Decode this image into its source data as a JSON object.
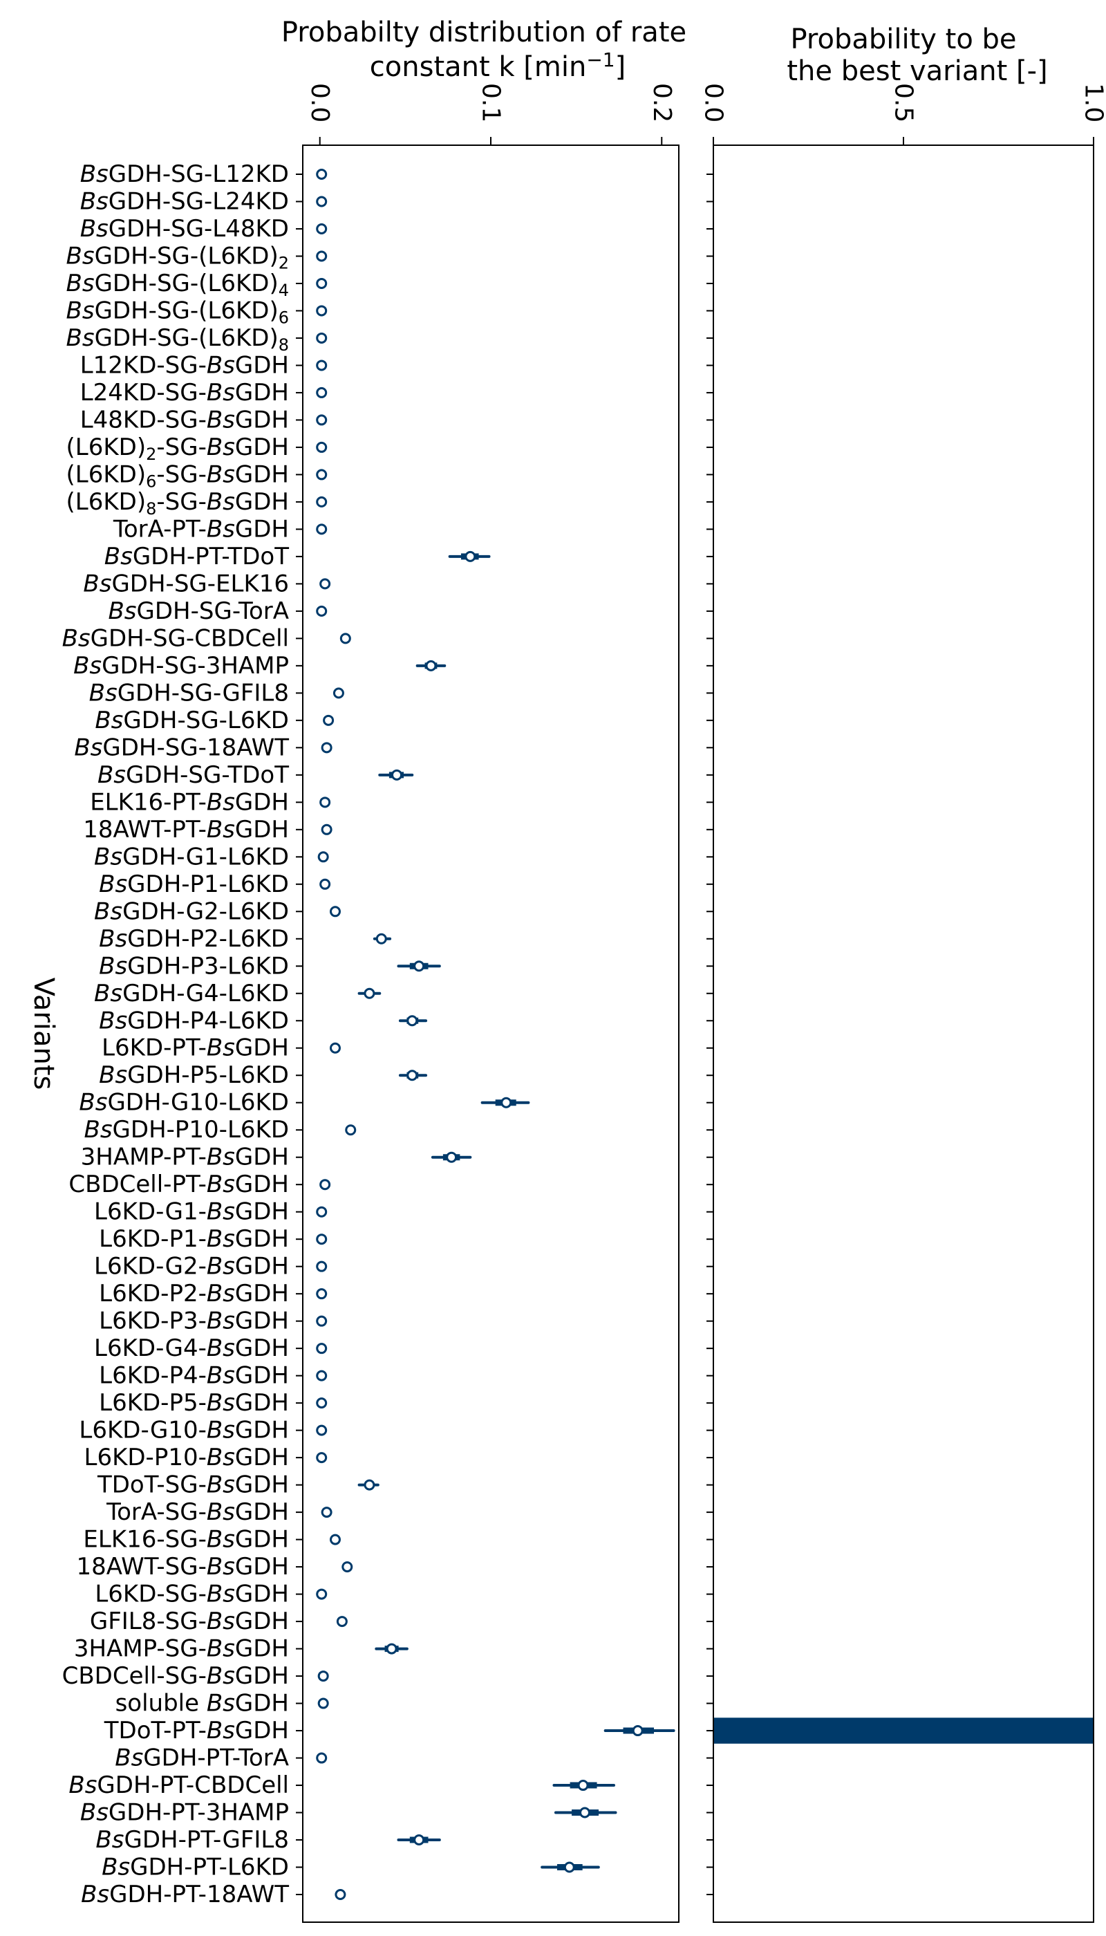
{
  "chart_data": [
    {
      "type": "forest",
      "title": "Probabilty distribution of rate constant k [min⁻¹]",
      "title_lines": [
        "Probabilty distribution of rate",
        "constant k [min⁻¹]"
      ],
      "ylabel": "Variants",
      "xlim": [
        -0.01,
        0.21
      ],
      "xticks": [
        0.0,
        0.1,
        0.2
      ],
      "xtick_labels": [
        "0.0",
        "0.1",
        "0.2"
      ],
      "color": "#003a6a",
      "categories": [
        "BsGDH-SG-L12KD",
        "BsGDH-SG-L24KD",
        "BsGDH-SG-L48KD",
        "BsGDH-SG-(L6KD)2",
        "BsGDH-SG-(L6KD)4",
        "BsGDH-SG-(L6KD)6",
        "BsGDH-SG-(L6KD)8",
        "L12KD-SG-BsGDH",
        "L24KD-SG-BsGDH",
        "L48KD-SG-BsGDH",
        "(L6KD)2-SG-BsGDH",
        "(L6KD)6-SG-BsGDH",
        "(L6KD)8-SG-BsGDH",
        "TorA-PT-BsGDH",
        "BsGDH-PT-TDoT",
        "BsGDH-SG-ELK16",
        "BsGDH-SG-TorA",
        "BsGDH-SG-CBDCell",
        "BsGDH-SG-3HAMP",
        "BsGDH-SG-GFIL8",
        "BsGDH-SG-L6KD",
        "BsGDH-SG-18AWT",
        "BsGDH-SG-TDoT",
        "ELK16-PT-BsGDH",
        "18AWT-PT-BsGDH",
        "BsGDH-G1-L6KD",
        "BsGDH-P1-L6KD",
        "BsGDH-G2-L6KD",
        "BsGDH-P2-L6KD",
        "BsGDH-P3-L6KD",
        "BsGDH-G4-L6KD",
        "BsGDH-P4-L6KD",
        "L6KD-PT-BsGDH",
        "BsGDH-P5-L6KD",
        "BsGDH-G10-L6KD",
        "BsGDH-P10-L6KD",
        "3HAMP-PT-BsGDH",
        "CBDCell-PT-BsGDH",
        "L6KD-G1-BsGDH",
        "L6KD-P1-BsGDH",
        "L6KD-G2-BsGDH",
        "L6KD-P2-BsGDH",
        "L6KD-P3-BsGDH",
        "L6KD-G4-BsGDH",
        "L6KD-P4-BsGDH",
        "L6KD-P5-BsGDH",
        "L6KD-G10-BsGDH",
        "L6KD-P10-BsGDH",
        "TDoT-SG-BsGDH",
        "TorA-SG-BsGDH",
        "ELK16-SG-BsGDH",
        "18AWT-SG-BsGDH",
        "L6KD-SG-BsGDH",
        "GFIL8-SG-BsGDH",
        "3HAMP-SG-BsGDH",
        "CBDCell-SG-BsGDH",
        "soluble BsGDH",
        "TDoT-PT-BsGDH",
        "BsGDH-PT-TorA",
        "BsGDH-PT-CBDCell",
        "BsGDH-PT-3HAMP",
        "BsGDH-PT-GFIL8",
        "BsGDH-PT-L6KD",
        "BsGDH-PT-18AWT"
      ],
      "median": [
        0.001,
        0.001,
        0.001,
        0.001,
        0.001,
        0.001,
        0.001,
        0.001,
        0.001,
        0.001,
        0.001,
        0.001,
        0.001,
        0.001,
        0.088,
        0.003,
        0.001,
        0.015,
        0.065,
        0.011,
        0.005,
        0.004,
        0.045,
        0.003,
        0.004,
        0.002,
        0.003,
        0.009,
        0.036,
        0.058,
        0.029,
        0.054,
        0.009,
        0.054,
        0.109,
        0.018,
        0.077,
        0.003,
        0.001,
        0.001,
        0.001,
        0.001,
        0.001,
        0.001,
        0.001,
        0.001,
        0.001,
        0.001,
        0.029,
        0.004,
        0.009,
        0.016,
        0.001,
        0.013,
        0.042,
        0.002,
        0.002,
        0.186,
        0.001,
        0.154,
        0.155,
        0.058,
        0.146,
        0.012
      ],
      "ci_low": [
        0.001,
        0.001,
        0.001,
        0.001,
        0.001,
        0.001,
        0.001,
        0.001,
        0.001,
        0.001,
        0.001,
        0.001,
        0.001,
        0.001,
        0.076,
        0.003,
        0.001,
        0.015,
        0.057,
        0.011,
        0.005,
        0.004,
        0.035,
        0.003,
        0.004,
        0.002,
        0.003,
        0.009,
        0.032,
        0.046,
        0.023,
        0.047,
        0.009,
        0.047,
        0.095,
        0.018,
        0.066,
        0.003,
        0.001,
        0.001,
        0.001,
        0.001,
        0.001,
        0.001,
        0.001,
        0.001,
        0.001,
        0.001,
        0.023,
        0.004,
        0.009,
        0.016,
        0.001,
        0.013,
        0.033,
        0.002,
        0.002,
        0.167,
        0.001,
        0.137,
        0.138,
        0.046,
        0.13,
        0.012
      ],
      "ci_high": [
        0.001,
        0.001,
        0.001,
        0.001,
        0.001,
        0.001,
        0.001,
        0.001,
        0.001,
        0.001,
        0.001,
        0.001,
        0.001,
        0.001,
        0.099,
        0.003,
        0.001,
        0.015,
        0.073,
        0.011,
        0.005,
        0.004,
        0.054,
        0.003,
        0.004,
        0.002,
        0.003,
        0.009,
        0.041,
        0.07,
        0.035,
        0.062,
        0.009,
        0.062,
        0.122,
        0.018,
        0.088,
        0.003,
        0.001,
        0.001,
        0.001,
        0.001,
        0.001,
        0.001,
        0.001,
        0.001,
        0.001,
        0.001,
        0.034,
        0.004,
        0.009,
        0.016,
        0.001,
        0.013,
        0.051,
        0.002,
        0.002,
        0.207,
        0.001,
        0.172,
        0.173,
        0.07,
        0.163,
        0.012
      ]
    },
    {
      "type": "bar",
      "orientation": "horizontal",
      "title": "Probability to be the best variant [-]",
      "title_lines": [
        "Probability to be",
        "the best variant [-]"
      ],
      "xlim": [
        0,
        1
      ],
      "xticks": [
        0.0,
        0.5,
        1.0
      ],
      "xtick_labels": [
        "0.0",
        "0.5",
        "1.0"
      ],
      "color": "#003a6a",
      "values": [
        0,
        0,
        0,
        0,
        0,
        0,
        0,
        0,
        0,
        0,
        0,
        0,
        0,
        0,
        0,
        0,
        0,
        0,
        0,
        0,
        0,
        0,
        0,
        0,
        0,
        0,
        0,
        0,
        0,
        0,
        0,
        0,
        0,
        0,
        0,
        0,
        0,
        0,
        0,
        0,
        0,
        0,
        0,
        0,
        0,
        0,
        0,
        0,
        0,
        0,
        0,
        0,
        0,
        0,
        0,
        0,
        0,
        1.0,
        0,
        0,
        0,
        0,
        0,
        0
      ]
    }
  ]
}
